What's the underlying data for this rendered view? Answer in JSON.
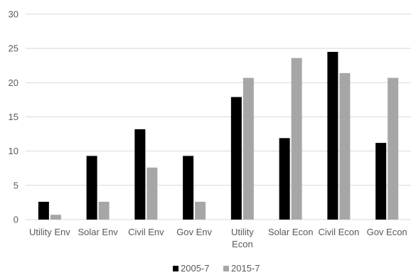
{
  "chart_data": {
    "type": "bar",
    "categories": [
      "Utility Env",
      "Solar Env",
      "Civil Env",
      "Gov Env",
      "Utility Econ",
      "Solar Econ",
      "Civil Econ",
      "Gov Econ"
    ],
    "category_lines": [
      [
        "Utility Env"
      ],
      [
        "Solar Env"
      ],
      [
        "Civil Env"
      ],
      [
        "Gov Env"
      ],
      [
        "Utility",
        "Econ"
      ],
      [
        "Solar Econ"
      ],
      [
        "Civil Econ"
      ],
      [
        "Gov Econ"
      ]
    ],
    "series": [
      {
        "name": "2005-7",
        "color": "#000000",
        "values": [
          2.6,
          9.3,
          13.2,
          9.3,
          17.9,
          11.9,
          24.5,
          11.2
        ]
      },
      {
        "name": "2015-7",
        "color": "#a6a6a6",
        "values": [
          0.7,
          2.6,
          7.6,
          2.6,
          20.7,
          23.6,
          21.4,
          20.7
        ]
      }
    ],
    "title": "",
    "xlabel": "",
    "ylabel": "",
    "ylim": [
      0,
      30
    ],
    "yticks": [
      0,
      5,
      10,
      15,
      20,
      25,
      30
    ],
    "grid": true,
    "legend": "bottom"
  }
}
